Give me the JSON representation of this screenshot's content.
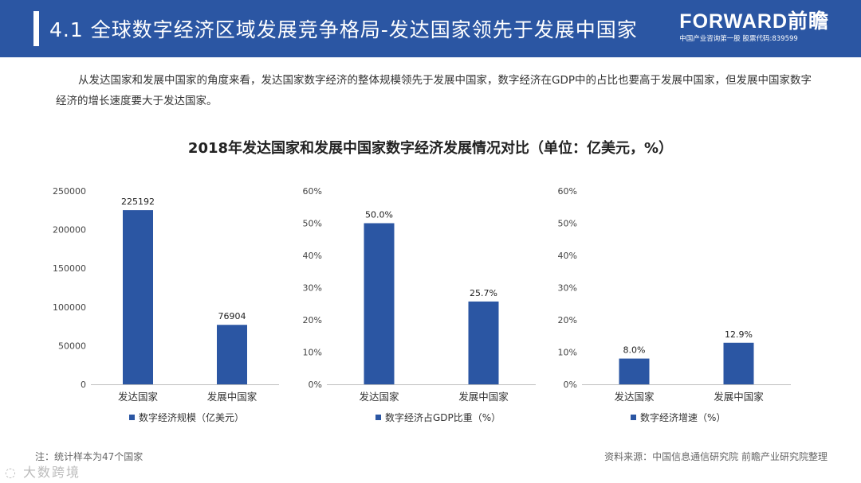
{
  "header": {
    "title": "4.1 全球数字经济区域发展竞争格局-发达国家领先于发展中国家",
    "logo_brand": "FORWARD前瞻",
    "logo_tagline": "中国产业咨询第一股 股票代码:839599"
  },
  "intro": "从发达国家和发展中国家的角度来看，发达国家数字经济的整体规模领先于发展中国家，数字经济在GDP中的占比也要高于发展中国家，但发展中国家数字经济的增长速度要大于发达国家。",
  "charts_title": "2018年发达国家和发展中国家数字经济发展情况对比（单位：亿美元，%）",
  "chart_data": [
    {
      "type": "bar",
      "categories": [
        "发达国家",
        "发展中国家"
      ],
      "values": [
        225192,
        76904
      ],
      "value_labels": [
        "225192",
        "76904"
      ],
      "ylim": [
        0,
        250000
      ],
      "yticks": [
        "0",
        "50000",
        "100000",
        "150000",
        "200000",
        "250000"
      ],
      "legend": "数字经济规模（亿美元）",
      "legend_position": "bottom",
      "grid": false,
      "color": "#2b56a3"
    },
    {
      "type": "bar",
      "categories": [
        "发达国家",
        "发展中国家"
      ],
      "values": [
        50.0,
        25.7
      ],
      "value_labels": [
        "50.0%",
        "25.7%"
      ],
      "ylim": [
        0,
        60
      ],
      "yticks": [
        "0%",
        "10%",
        "20%",
        "30%",
        "40%",
        "50%",
        "60%"
      ],
      "legend": "数字经济占GDP比重（%）",
      "legend_position": "bottom",
      "grid": false,
      "color": "#2b56a3"
    },
    {
      "type": "bar",
      "categories": [
        "发达国家",
        "发展中国家"
      ],
      "values": [
        8.0,
        12.9
      ],
      "value_labels": [
        "8.0%",
        "12.9%"
      ],
      "ylim": [
        0,
        60
      ],
      "yticks": [
        "0%",
        "10%",
        "20%",
        "30%",
        "40%",
        "50%",
        "60%"
      ],
      "legend": "数字经济增速（%）",
      "legend_position": "bottom",
      "grid": false,
      "color": "#2b56a3"
    }
  ],
  "footnote": "注：统计样本为47个国家",
  "source": "资料来源：中国信息通信研究院 前瞻产业研究院整理",
  "watermark": "大数跨境"
}
